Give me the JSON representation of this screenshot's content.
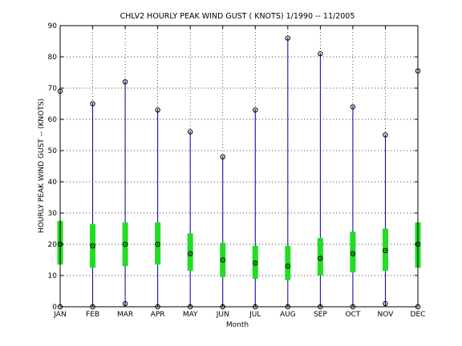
{
  "chart_data": {
    "type": "boxplot",
    "title": "CHLV2  HOURLY PEAK WIND GUST ( KNOTS) 1/1990 -- 11/2005",
    "xlabel": "Month",
    "ylabel": "HOURLY PEAK WIND GUST -- (KNOTS)",
    "ylim": [
      0,
      90
    ],
    "yticks": [
      0,
      10,
      20,
      30,
      40,
      50,
      60,
      70,
      80,
      90
    ],
    "grid": true,
    "categories": [
      "JAN",
      "FEB",
      "MAR",
      "APR",
      "MAY",
      "JUN",
      "JUL",
      "AUG",
      "SEP",
      "OCT",
      "NOV",
      "DEC"
    ],
    "min": [
      0,
      0,
      1,
      0,
      0,
      0,
      0,
      0,
      0,
      0,
      1,
      0
    ],
    "max": [
      69,
      65,
      72,
      63,
      56,
      48,
      63,
      86,
      81,
      64,
      55,
      75.5
    ],
    "q1": [
      13.5,
      12.5,
      13,
      13.5,
      11.5,
      9.5,
      9,
      8.5,
      10,
      11,
      11.5,
      12.5
    ],
    "q3": [
      27.5,
      26.5,
      27,
      27,
      23.5,
      20.5,
      19.5,
      19.5,
      22,
      24,
      25,
      27
    ],
    "median": [
      20,
      19.5,
      20,
      20,
      17,
      15,
      14,
      13,
      15.5,
      17,
      18,
      20
    ],
    "colors": {
      "whisker": "#0000aa",
      "box": "#22dd22",
      "marker": "#000000"
    }
  }
}
